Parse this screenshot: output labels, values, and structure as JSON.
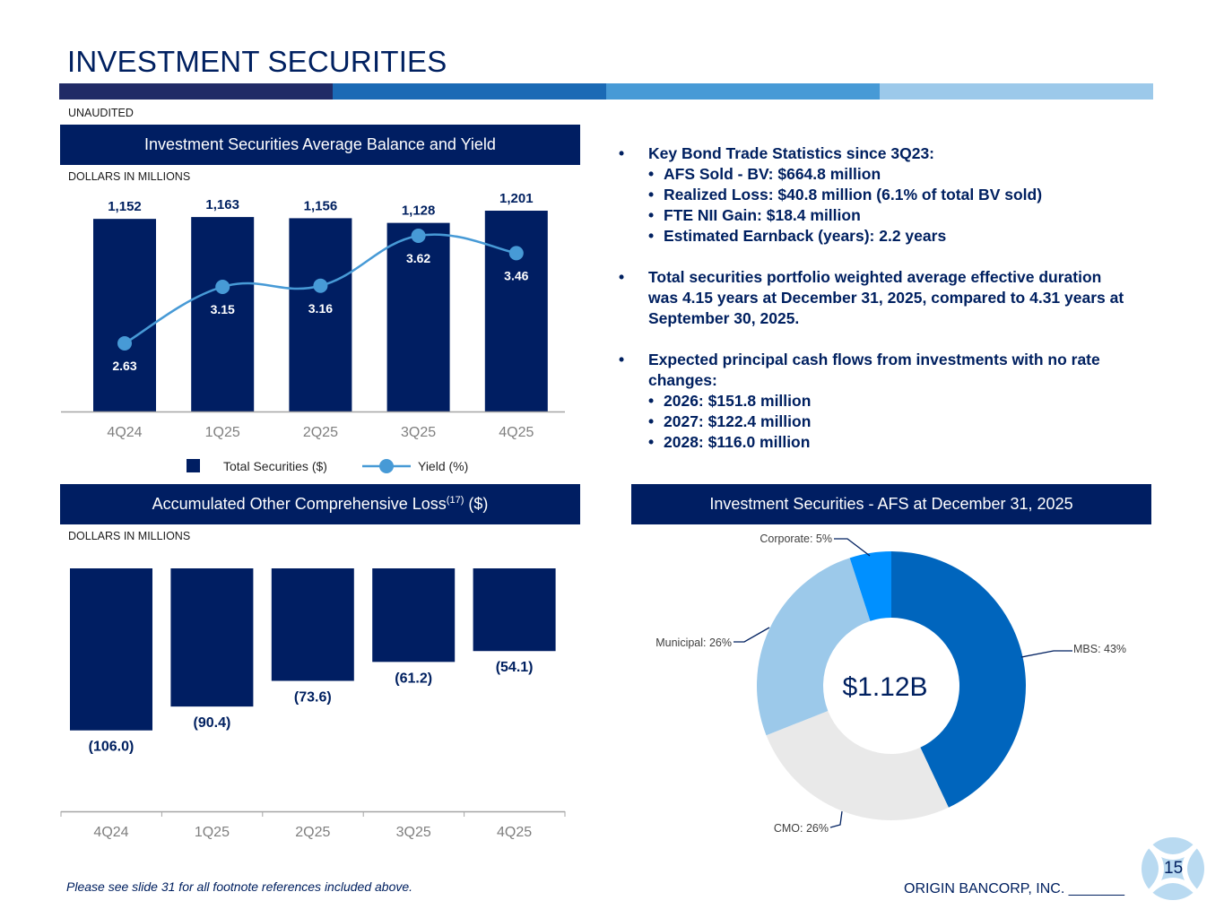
{
  "header": {
    "title": "INVESTMENT SECURITIES",
    "unaudited": "UNAUDITED",
    "stripe_colors": [
      "#212b66",
      "#1b6ab5",
      "#479ad6",
      "#9cc9ea"
    ]
  },
  "chart_data": [
    {
      "type": "bar",
      "title": "Investment Securities Average Balance and Yield",
      "units_label": "DOLLARS IN MILLIONS",
      "categories": [
        "4Q24",
        "1Q25",
        "2Q25",
        "3Q25",
        "4Q25"
      ],
      "series": [
        {
          "name": "Total Securities ($)",
          "type": "bar",
          "values": [
            1152,
            1163,
            1156,
            1128,
            1201
          ],
          "labels": [
            "1,152",
            "1,163",
            "1,156",
            "1,128",
            "1,201"
          ],
          "color": "#001e62"
        },
        {
          "name": "Yield (%)",
          "type": "line",
          "values": [
            2.63,
            3.15,
            3.16,
            3.62,
            3.46
          ],
          "labels": [
            "2.63",
            "3.15",
            "3.16",
            "3.62",
            "3.46"
          ],
          "color": "#479ad6"
        }
      ],
      "legend_position": "bottom",
      "ylim_bars": [
        0,
        1250
      ],
      "ylim_line": [
        2.2,
        3.9
      ]
    },
    {
      "type": "bar",
      "title_main": "Accumulated Other Comprehensive Loss",
      "title_sup": "(17)",
      "title_suffix": " ($)",
      "units_label": "DOLLARS IN MILLIONS",
      "categories": [
        "4Q24",
        "1Q25",
        "2Q25",
        "3Q25",
        "4Q25"
      ],
      "values": [
        -106.0,
        -90.4,
        -73.6,
        -61.2,
        -54.1
      ],
      "labels": [
        "(106.0)",
        "(90.4)",
        "(73.6)",
        "(61.2)",
        "(54.1)"
      ],
      "ylim": [
        -160,
        0
      ],
      "color": "#001e62"
    },
    {
      "type": "pie",
      "title": "Investment Securities - AFS at December 31, 2025",
      "center_label": "$1.12B",
      "slices": [
        {
          "name": "MBS",
          "value": 43,
          "label": "MBS: 43%",
          "color": "#0065bd"
        },
        {
          "name": "CMO",
          "value": 26,
          "label": "CMO: 26%",
          "color": "#e9e9e9"
        },
        {
          "name": "Municipal",
          "value": 26,
          "label": "Municipal: 26%",
          "color": "#9cc9ea"
        },
        {
          "name": "Corporate",
          "value": 5,
          "label": "Corporate: 5%",
          "color": "#0090ff"
        }
      ]
    }
  ],
  "bullets": [
    {
      "text": "Key Bond Trade Statistics since 3Q23:",
      "sub": [
        "AFS Sold - BV: $664.8 million",
        "Realized Loss: $40.8 million (6.1% of total BV sold)",
        "FTE NII Gain: $18.4 million",
        "Estimated Earnback (years): 2.2 years"
      ]
    },
    {
      "lines": [
        "Total securities portfolio weighted average effective duration",
        "was 4.15 years at December 31, 2025, compared to 4.31 years at",
        "September 30, 2025."
      ]
    },
    {
      "lines": [
        "Expected principal cash flows from investments with no rate",
        "changes:"
      ],
      "sub": [
        "2026: $151.8 million",
        "2027: $122.4 million",
        "2028: $116.0 million"
      ]
    }
  ],
  "footer": {
    "footnote": "Please see slide 31 for all footnote references included above.",
    "company": "ORIGIN BANCORP, INC. _______",
    "page_number": "15"
  }
}
